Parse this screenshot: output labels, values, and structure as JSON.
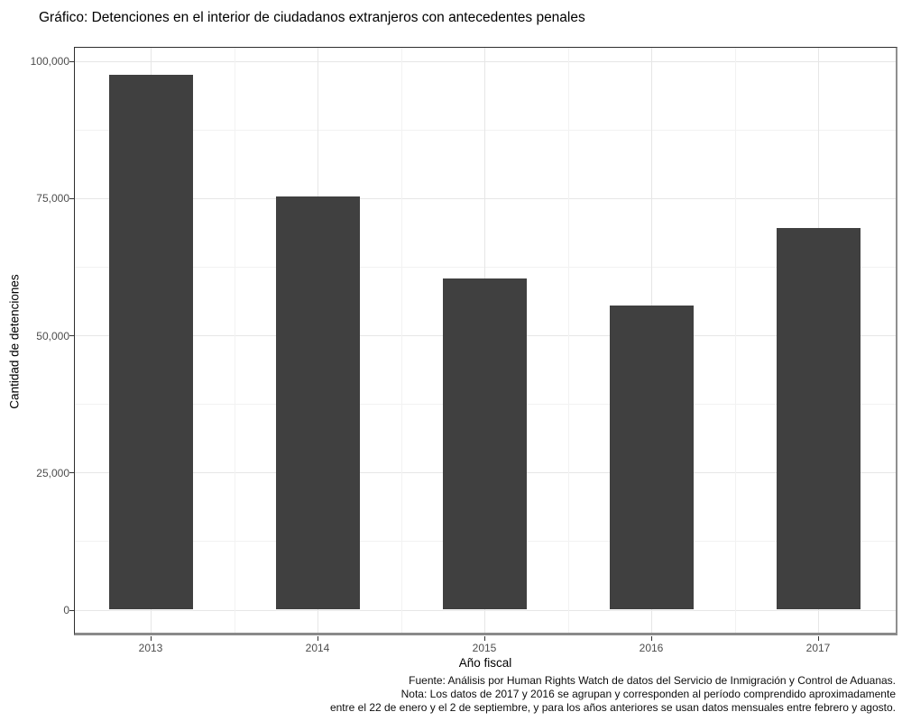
{
  "title": "Gráfico: Detenciones en el interior de ciudadanos extranjeros con antecedentes penales",
  "chart_data": {
    "type": "bar",
    "categories": [
      "2013",
      "2014",
      "2015",
      "2016",
      "2017"
    ],
    "values": [
      97500,
      75300,
      60400,
      55500,
      69500
    ],
    "title": "Gráfico: Detenciones en el interior de ciudadanos extranjeros con antecedentes penales",
    "xlabel": "Año fiscal",
    "ylabel": "Cantidad de detenciones",
    "ylim": [
      0,
      100000
    ],
    "yticks": [
      {
        "value": 0,
        "label": "0"
      },
      {
        "value": 25000,
        "label": "25,000"
      },
      {
        "value": 50000,
        "label": "50,000"
      },
      {
        "value": 75000,
        "label": "75,000"
      },
      {
        "value": 100000,
        "label": "100,000"
      }
    ],
    "yminor": [
      12500,
      37500,
      62500,
      87500
    ],
    "grid": "major and minor, both axes",
    "legend": "none",
    "bar_color": "#404040"
  },
  "caption": {
    "lines": [
      "Fuente: Análisis por Human Rights Watch de datos del Servicio de Inmigración y Control de Aduanas.",
      "Nota: Los datos de 2017 y 2016 se agrupan y corresponden al período comprendido aproximadamente",
      "entre el 22 de enero y el 2 de septiembre, y para los años anteriores se usan datos mensuales entre febrero y agosto."
    ]
  },
  "colors": {
    "bar": "#404040",
    "grid_major": "#e6e6e6",
    "grid_minor": "#f2f2f2",
    "panel_border_dark": "#2e2e2e",
    "panel_border_gray": "#8a8a8a",
    "tick_text": "#4d4d4d",
    "tick_mark": "#333333",
    "title_text": "#000000"
  }
}
